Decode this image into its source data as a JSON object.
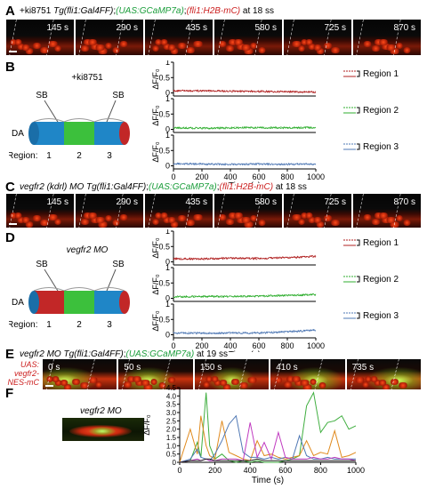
{
  "panels": {
    "A": {
      "label": "A",
      "cond": "+ki8751",
      "tg1": "Tg(fli1:Gal4FF)",
      "tg2": "(UAS:GCaMP7a)",
      "tg3": "(fli1:H2B-mC)",
      "at": "at 18 ss",
      "times": [
        "145 s",
        "290 s",
        "435 s",
        "580 s",
        "725 s",
        "870 s"
      ]
    },
    "B": {
      "label": "B",
      "cond": "+ki8751",
      "sb": "SB",
      "da": "DA",
      "region_word": "Region:",
      "regions": [
        "1",
        "2",
        "3"
      ]
    },
    "C": {
      "label": "C",
      "cond": "vegfr2 (kdrl) MO",
      "tg1": "Tg(fli1:Gal4FF)",
      "tg2": "(UAS:GCaMP7a)",
      "tg3": "(fli1:H2B-mC)",
      "at": "at 18 ss",
      "times": [
        "145 s",
        "290 s",
        "435 s",
        "580 s",
        "725 s",
        "870 s"
      ]
    },
    "D": {
      "label": "D",
      "cond": "vegfr2 MO",
      "sb": "SB",
      "da": "DA",
      "region_word": "Region:",
      "regions": [
        "1",
        "2",
        "3"
      ]
    },
    "E": {
      "label": "E",
      "cond": "vegfr2 MO",
      "tg1": "Tg(fli1:Gal4FF)",
      "tg2": "(UAS:GCaMP7a)",
      "at": "at 19 ss",
      "side": [
        "UAS:",
        "vegfr2-",
        "NES-mC"
      ],
      "times": [
        "0 s",
        "50 s",
        "150 s",
        "410 s",
        "735 s"
      ]
    },
    "F": {
      "label": "F",
      "cond": "vegfr2 MO"
    }
  },
  "chart_data": [
    {
      "id": "B",
      "type": "line",
      "xlabel": "Time (s)",
      "ylabel": "ΔF/F₀",
      "x_ticks": [
        "0",
        "200",
        "400",
        "600",
        "800",
        "1000"
      ],
      "y_ticks": [
        "1",
        "0.5",
        "0"
      ],
      "xlim": [
        0,
        1000
      ],
      "ylim": [
        -0.1,
        1
      ],
      "series": [
        {
          "name": "Region 1",
          "color": "#b02020",
          "values": [
            0.07,
            0.07,
            0.06,
            0.05,
            0.04,
            0.03
          ]
        },
        {
          "name": "Region 2",
          "color": "#2fae2f",
          "values": [
            0.05,
            0.04,
            0.05,
            0.06,
            0.05,
            0.06
          ]
        },
        {
          "name": "Region 3",
          "color": "#4f78b4",
          "values": [
            0.07,
            0.06,
            0.05,
            0.06,
            0.05,
            0.06
          ]
        }
      ]
    },
    {
      "id": "D",
      "type": "line",
      "xlabel": "Time (s)",
      "ylabel": "ΔF/F₀",
      "x_ticks": [
        "0",
        "200",
        "400",
        "600",
        "800",
        "1000"
      ],
      "y_ticks": [
        "1",
        "0.5",
        "0"
      ],
      "xlim": [
        0,
        1000
      ],
      "ylim": [
        -0.1,
        1
      ],
      "series": [
        {
          "name": "Region 1",
          "color": "#b02020",
          "values": [
            0.1,
            0.1,
            0.12,
            0.11,
            0.14,
            0.18
          ]
        },
        {
          "name": "Region 2",
          "color": "#2fae2f",
          "values": [
            0.05,
            0.06,
            0.06,
            0.07,
            0.1,
            0.12
          ]
        },
        {
          "name": "Region 3",
          "color": "#4f78b4",
          "values": [
            0.06,
            0.05,
            0.06,
            0.06,
            0.1,
            0.15
          ]
        }
      ]
    },
    {
      "id": "F",
      "type": "line",
      "xlabel": "Time (s)",
      "ylabel": "ΔF/F₀",
      "x_ticks": [
        "0",
        "200",
        "400",
        "600",
        "800",
        "1000"
      ],
      "y_ticks": [
        "4.5",
        "4.0",
        "3.5",
        "3.0",
        "2.5",
        "2.0",
        "1.5",
        "1.0",
        "0.5",
        "0"
      ],
      "xlim": [
        0,
        1000
      ],
      "ylim": [
        0,
        4.5
      ],
      "x": [
        0,
        60,
        100,
        120,
        150,
        170,
        200,
        240,
        280,
        320,
        360,
        400,
        440,
        480,
        520,
        560,
        600,
        640,
        680,
        720,
        760,
        800,
        840,
        880,
        920,
        960,
        1000
      ],
      "series": [
        {
          "color": "#3fae3f",
          "values": [
            0,
            0.1,
            1.2,
            0.3,
            4.2,
            1.0,
            0.2,
            0.5,
            0.1,
            0.0,
            0.1,
            0.0,
            0.1,
            0.0,
            0.0,
            0.0,
            0.1,
            0.2,
            0.4,
            3.4,
            4.2,
            1.8,
            2.4,
            2.5,
            2.8,
            2.0,
            2.2
          ]
        },
        {
          "color": "#e08a1e",
          "values": [
            0,
            2.0,
            0.5,
            2.8,
            1.0,
            0.4,
            0.2,
            2.5,
            0.6,
            0.4,
            0.2,
            0.1,
            1.3,
            0.4,
            0.5,
            0.3,
            0.2,
            0.3,
            0.4,
            1.3,
            0.4,
            0.6,
            0.5,
            1.9,
            0.3,
            0.4,
            0.6
          ]
        },
        {
          "color": "#4f78b4",
          "values": [
            0,
            0.2,
            0.8,
            0.3,
            0.2,
            0.1,
            0.5,
            1.3,
            2.3,
            2.8,
            0.6,
            0.3,
            0.3,
            0.2,
            0.3,
            0.2,
            0.3,
            0.2,
            1.6,
            0.4,
            0.2,
            0.2,
            0.3,
            0.2,
            0.2,
            0.2,
            0.2
          ]
        },
        {
          "color": "#c03ac0",
          "values": [
            0,
            0.1,
            0.2,
            0.1,
            0.2,
            0.1,
            0.1,
            0.2,
            0.2,
            0.2,
            0.1,
            2.4,
            0.3,
            1.2,
            0.2,
            1.8,
            0.3,
            0.2,
            0.2,
            0.2,
            0.3,
            0.2,
            0.2,
            0.3,
            0.2,
            0.2,
            0.1
          ]
        },
        {
          "color": "#222222",
          "values": [
            0,
            0.1,
            0.1,
            0.1,
            0.2,
            0.2,
            0.1,
            0.1,
            0.1,
            0.1,
            0.1,
            0.1,
            0.2,
            0.1,
            0.1,
            0.1,
            0.1,
            0.1,
            0.1,
            0.1,
            0.1,
            0.1,
            0.1,
            0.1,
            0.1,
            0.1,
            0.1
          ]
        }
      ]
    }
  ]
}
